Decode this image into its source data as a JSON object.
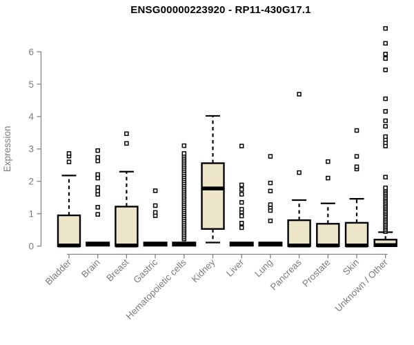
{
  "page": {
    "background": "#ffffff"
  },
  "chart_data": {
    "type": "boxplot",
    "title": "ENSG00000223920 - RP11-430G17.1",
    "ylabel": "Expression",
    "xlabel": "",
    "ylim": [
      0,
      6.9
    ],
    "yticks": [
      0,
      1,
      2,
      3,
      4,
      5,
      6
    ],
    "grid": false,
    "legend": "none",
    "colors": {
      "box_fill": "#ede5c8",
      "box_stroke": "#000000",
      "median": "#000000",
      "whisker": "#000000",
      "outlier_stroke": "#000000",
      "outlier_fill": "#ffffff",
      "axis": "#828282",
      "label": "#7c7c7c",
      "title": "#000000"
    },
    "categories": [
      "Bladder",
      "Brain",
      "Breast",
      "Gastric",
      "Hematopoietic cells",
      "Kidney",
      "Liver",
      "Lung",
      "Pancreas",
      "Prostate",
      "Skin",
      "Unknown / Other"
    ],
    "groups": [
      {
        "name": "Bladder",
        "whisker_low": 0,
        "q1": 0,
        "median": 0.02,
        "q3": 0.95,
        "whisker_high": 2.18,
        "outliers": [
          2.6,
          2.78,
          2.86
        ]
      },
      {
        "name": "Brain",
        "whisker_low": 0,
        "q1": 0,
        "median": 0,
        "q3": 0,
        "whisker_high": 0,
        "outliers": [
          0.98,
          1.2,
          1.6,
          1.7,
          1.81,
          2.1,
          2.21,
          2.63,
          2.74,
          2.95
        ]
      },
      {
        "name": "Breast",
        "whisker_low": 0,
        "q1": 0,
        "median": 0.02,
        "q3": 1.22,
        "whisker_high": 2.3,
        "outliers": [
          3.17,
          3.47
        ]
      },
      {
        "name": "Gastric",
        "whisker_low": 0,
        "q1": 0,
        "median": 0,
        "q3": 0,
        "whisker_high": 0,
        "outliers": [
          0.94,
          1.04,
          1.25,
          1.71
        ]
      },
      {
        "name": "Hematopoietic cells",
        "whisker_low": 0,
        "q1": 0,
        "median": 0,
        "q3": 0,
        "whisker_high": 0,
        "outliers": [
          0.22,
          0.28,
          0.34,
          0.4,
          0.46,
          0.52,
          0.58,
          0.64,
          0.7,
          0.76,
          0.82,
          0.88,
          0.94,
          1.0,
          1.06,
          1.12,
          1.18,
          1.24,
          1.3,
          1.36,
          1.42,
          1.48,
          1.54,
          1.6,
          1.66,
          1.72,
          1.78,
          1.84,
          1.9,
          1.96,
          2.02,
          2.08,
          2.14,
          2.2,
          2.26,
          2.32,
          2.38,
          2.44,
          2.5,
          2.56,
          2.62,
          2.68,
          2.74,
          2.8,
          2.86,
          3.1
        ]
      },
      {
        "name": "Kidney",
        "whisker_low": 0.11,
        "q1": 0.53,
        "median": 1.78,
        "q3": 2.56,
        "whisker_high": 4.02,
        "outliers": []
      },
      {
        "name": "Liver",
        "whisker_low": 0,
        "q1": 0,
        "median": 0,
        "q3": 0,
        "whisker_high": 0,
        "outliers": [
          0.57,
          0.71,
          0.93,
          1.05,
          1.14,
          1.35,
          1.6,
          1.75,
          1.89,
          3.09
        ]
      },
      {
        "name": "Lung",
        "whisker_low": 0,
        "q1": 0,
        "median": 0,
        "q3": 0,
        "whisker_high": 0,
        "outliers": [
          0.78,
          1.1,
          1.2,
          1.28,
          1.7,
          1.95,
          2.77
        ]
      },
      {
        "name": "Pancreas",
        "whisker_low": 0,
        "q1": 0,
        "median": 0.02,
        "q3": 0.8,
        "whisker_high": 1.42,
        "outliers": [
          2.27,
          4.69
        ]
      },
      {
        "name": "Prostate",
        "whisker_low": 0,
        "q1": 0,
        "median": 0.02,
        "q3": 0.69,
        "whisker_high": 1.32,
        "outliers": [
          2.1,
          2.61
        ]
      },
      {
        "name": "Skin",
        "whisker_low": 0,
        "q1": 0,
        "median": 0.02,
        "q3": 0.72,
        "whisker_high": 1.46,
        "outliers": [
          2.38,
          2.45,
          2.77,
          3.57
        ]
      },
      {
        "name": "Unknown / Other",
        "whisker_low": 0,
        "q1": 0,
        "median": 0.03,
        "q3": 0.2,
        "whisker_high": 0.43,
        "outliers": [
          0.45,
          0.5,
          0.55,
          0.6,
          0.65,
          0.7,
          0.75,
          0.8,
          0.85,
          0.9,
          0.95,
          1.0,
          1.05,
          1.1,
          1.15,
          1.2,
          1.25,
          1.3,
          1.35,
          1.4,
          1.45,
          1.5,
          1.55,
          1.6,
          1.65,
          1.7,
          1.75,
          1.8,
          2.13,
          3.09,
          3.19,
          3.29,
          3.38,
          3.7,
          3.87,
          4.16,
          4.55,
          5.44,
          5.79,
          5.93,
          6.26,
          6.72
        ]
      }
    ]
  }
}
